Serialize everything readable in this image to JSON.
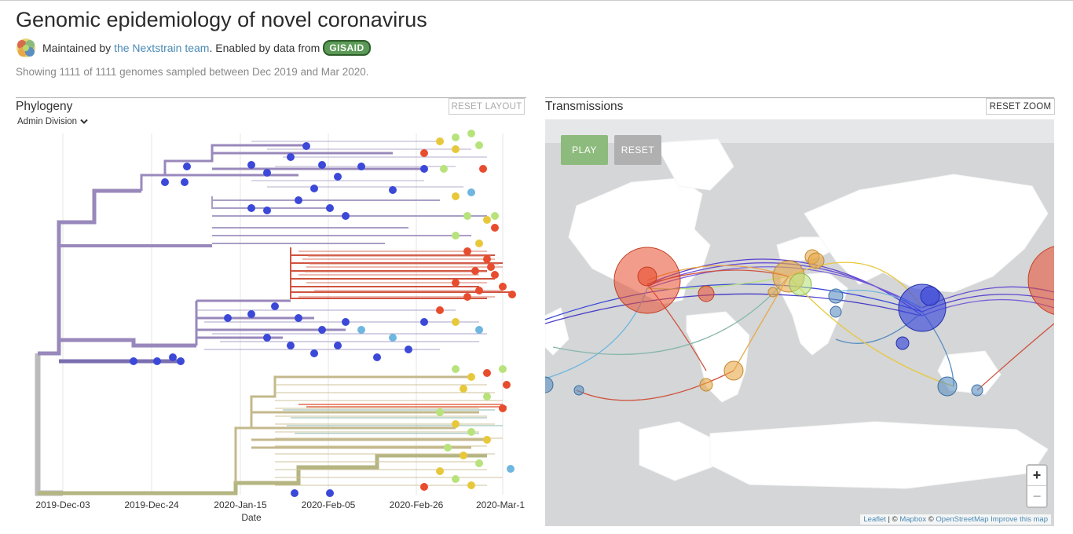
{
  "header": {
    "title": "Genomic epidemiology of novel coronavirus",
    "maintained_prefix": "Maintained by",
    "maintained_link": "the Nextstrain team",
    "enabled_text": ". Enabled by data from",
    "gisaid_logo": "GISAID",
    "subtitle": "Showing 1111 of 1111 genomes sampled between Dec 2019 and Mar 2020."
  },
  "phylogeny": {
    "title": "Phylogeny",
    "reset_button": "RESET LAYOUT",
    "color_by": "Admin Division",
    "axis_title": "Date",
    "ticks": [
      "2019-Dec-03",
      "2019-Dec-24",
      "2020-Jan-15",
      "2020-Feb-05",
      "2020-Feb-26",
      "2020-Mar-1"
    ]
  },
  "transmissions": {
    "title": "Transmissions",
    "reset_zoom_button": "RESET ZOOM",
    "play_button": "PLAY",
    "reset_button": "RESET",
    "zoom_in": "+",
    "zoom_out": "−",
    "attribution": {
      "leaflet": "Leaflet",
      "sep1": " | © ",
      "mapbox": "Mapbox",
      "sep2": " © ",
      "osm": "OpenStreetMap",
      "improve": "Improve this map"
    }
  },
  "colors": {
    "play_green": "#8dbb7d",
    "reset_grey": "#b0b0b0",
    "link_blue": "#4a8ab5",
    "clade_purple": "#9988bb",
    "clade_red": "#d0533f",
    "clade_olive": "#b5b582",
    "tip_blue": "#3b48d8",
    "tip_red": "#e84c2e",
    "tip_yellow": "#e8c83b",
    "tip_green": "#b8e37c"
  }
}
